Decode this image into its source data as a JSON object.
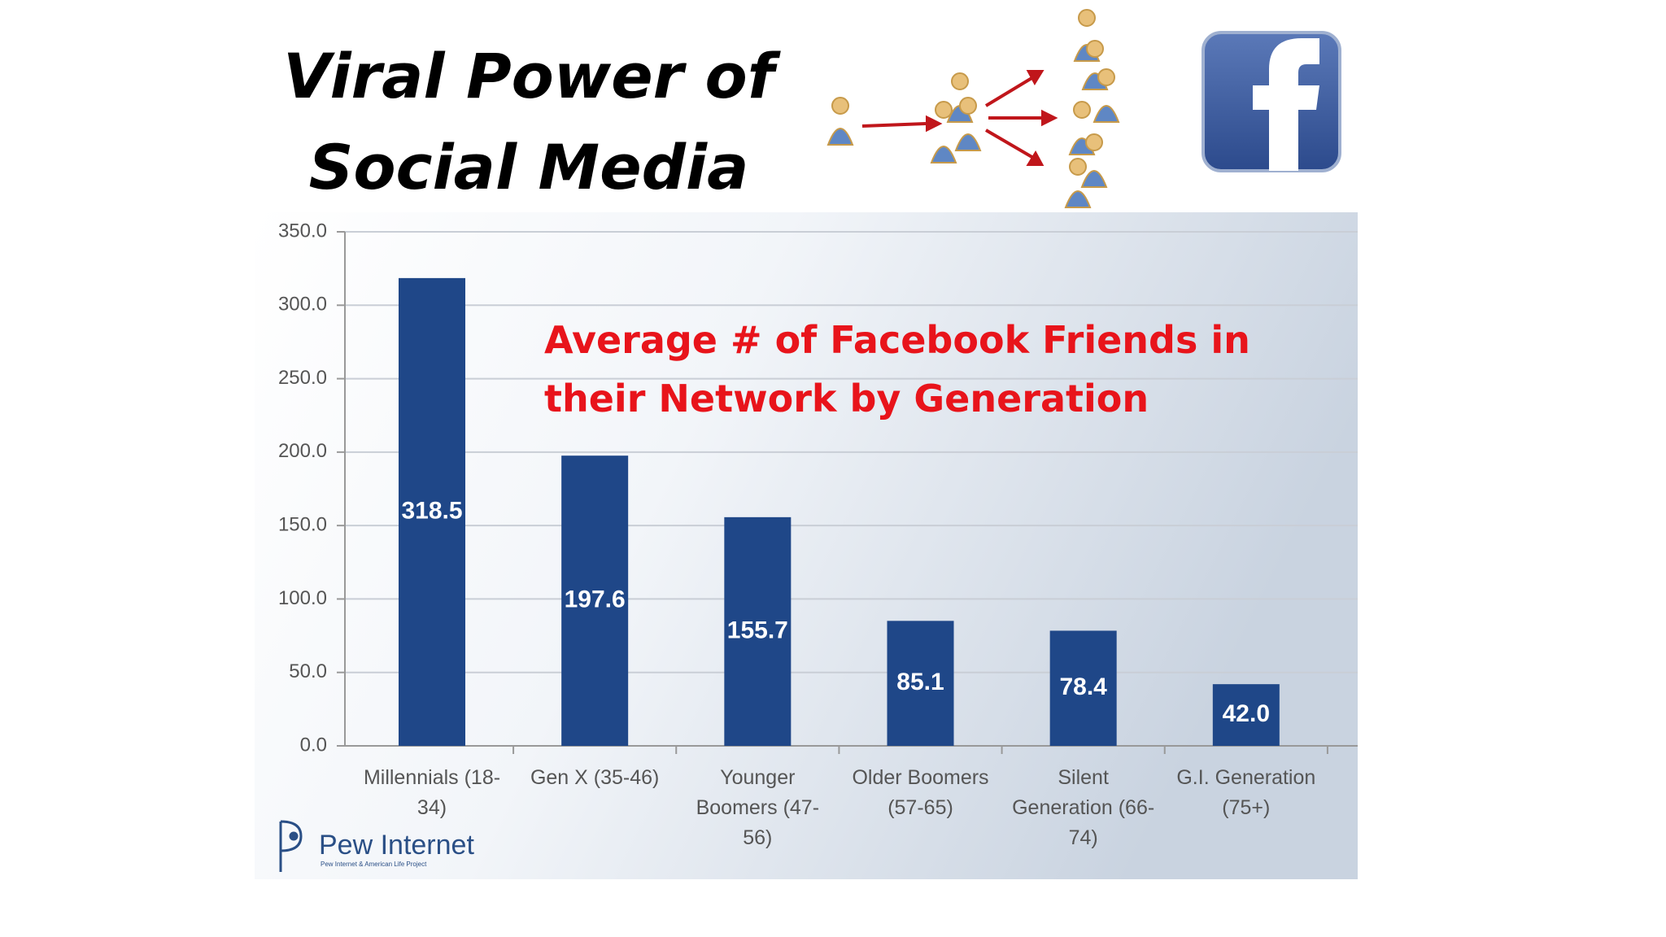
{
  "slide_title": "Viral Power of Social Media",
  "chart_data": {
    "type": "bar",
    "title": "Average # of Facebook Friends in their Network by Generation",
    "categories": [
      "Millennials (18-34)",
      "Gen X (35-46)",
      "Younger Boomers (47-56)",
      "Older Boomers (57-65)",
      "Silent Generation (66-74)",
      "G.I. Generation (75+)"
    ],
    "values": [
      318.5,
      197.6,
      155.7,
      85.1,
      78.4,
      42.0
    ],
    "value_labels": [
      "318.5",
      "197.6",
      "155.7",
      "85.1",
      "78.4",
      "42.0"
    ],
    "color": "#1f4788",
    "ylim": [
      0,
      350
    ],
    "yticks": [
      {
        "value": 0,
        "label": "0.0"
      },
      {
        "value": 50,
        "label": "50.0"
      },
      {
        "value": 100,
        "label": "100.0"
      },
      {
        "value": 150,
        "label": "150.0"
      },
      {
        "value": 200,
        "label": "200.0"
      },
      {
        "value": 250,
        "label": "250.0"
      },
      {
        "value": 300,
        "label": "300.0"
      },
      {
        "value": 350,
        "label": "350.0"
      }
    ],
    "grid": true
  },
  "source": {
    "name": "Pew Internet",
    "subtitle": "Pew Internet & American Life Project"
  }
}
